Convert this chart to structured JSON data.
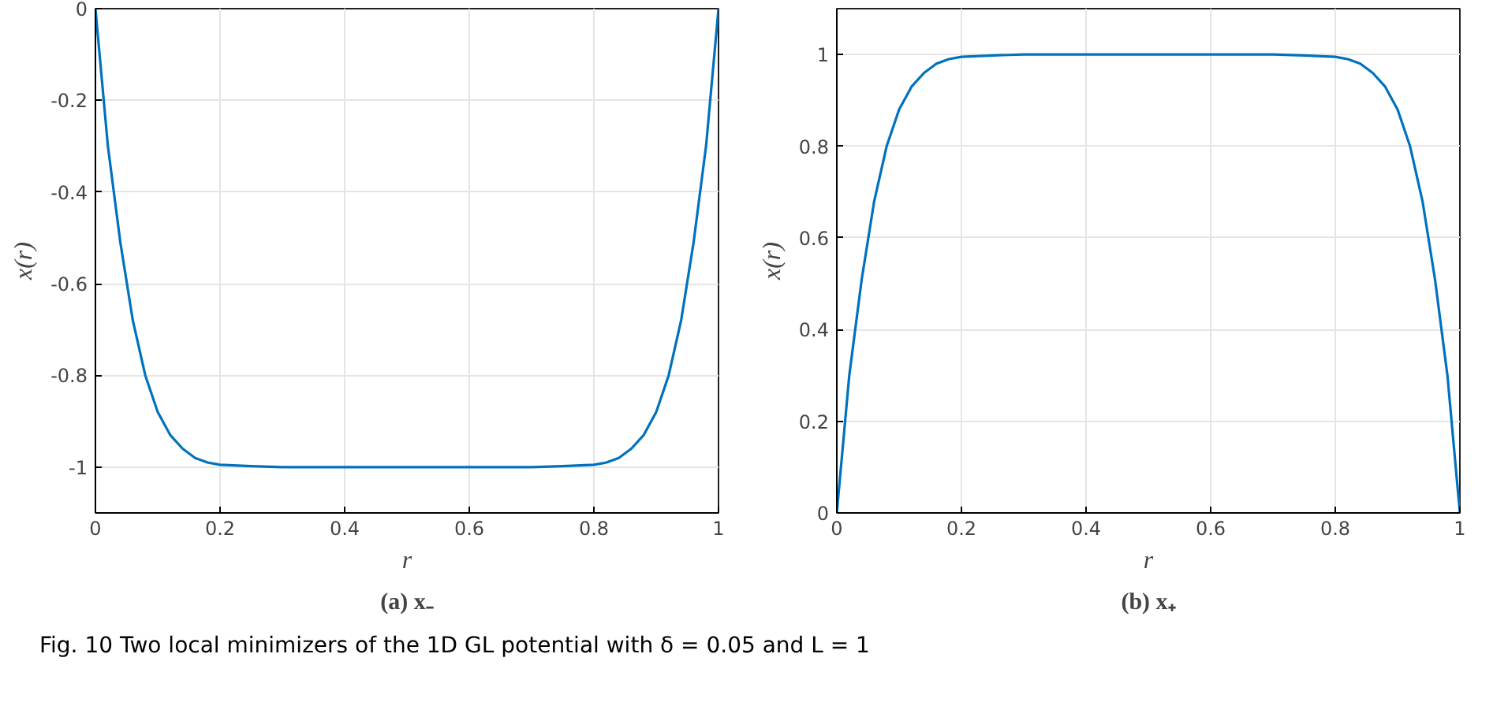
{
  "chart_data": [
    {
      "type": "line",
      "title": "(a) x₋",
      "xlabel": "r",
      "ylabel": "x(r)",
      "xlim": [
        0,
        1
      ],
      "ylim": [
        -1.1,
        0
      ],
      "xticks": [
        0,
        0.2,
        0.4,
        0.6,
        0.8,
        1
      ],
      "yticks": [
        0,
        -0.2,
        -0.4,
        -0.6,
        -0.8,
        -1
      ],
      "grid": true,
      "x": [
        0,
        0.02,
        0.04,
        0.06,
        0.08,
        0.1,
        0.12,
        0.14,
        0.16,
        0.18,
        0.2,
        0.25,
        0.3,
        0.4,
        0.5,
        0.6,
        0.7,
        0.75,
        0.8,
        0.82,
        0.84,
        0.86,
        0.88,
        0.9,
        0.92,
        0.94,
        0.96,
        0.98,
        1
      ],
      "series": [
        {
          "color": "#0072bd",
          "values": [
            0,
            -0.3,
            -0.51,
            -0.68,
            -0.8,
            -0.88,
            -0.93,
            -0.96,
            -0.98,
            -0.99,
            -0.995,
            -0.998,
            -1,
            -1,
            -1,
            -1,
            -1,
            -0.998,
            -0.995,
            -0.99,
            -0.98,
            -0.96,
            -0.93,
            -0.88,
            -0.8,
            -0.68,
            -0.51,
            -0.3,
            0
          ]
        }
      ],
      "annotations": [
        "Fig. 10  Two local minimizers of the 1D GL potential with δ = 0.05 and L = 1"
      ]
    },
    {
      "type": "line",
      "title": "(b) x₊",
      "xlabel": "r",
      "ylabel": "x(r)",
      "xlim": [
        0,
        1
      ],
      "ylim": [
        0,
        1.1
      ],
      "xticks": [
        0,
        0.2,
        0.4,
        0.6,
        0.8,
        1
      ],
      "yticks": [
        0,
        0.2,
        0.4,
        0.6,
        0.8,
        1
      ],
      "grid": true,
      "x": [
        0,
        0.02,
        0.04,
        0.06,
        0.08,
        0.1,
        0.12,
        0.14,
        0.16,
        0.18,
        0.2,
        0.25,
        0.3,
        0.4,
        0.5,
        0.6,
        0.7,
        0.75,
        0.8,
        0.82,
        0.84,
        0.86,
        0.88,
        0.9,
        0.92,
        0.94,
        0.96,
        0.98,
        1
      ],
      "series": [
        {
          "color": "#0072bd",
          "values": [
            0,
            0.3,
            0.51,
            0.68,
            0.8,
            0.88,
            0.93,
            0.96,
            0.98,
            0.99,
            0.995,
            0.998,
            1,
            1,
            1,
            1,
            1,
            0.998,
            0.995,
            0.99,
            0.98,
            0.96,
            0.93,
            0.88,
            0.8,
            0.68,
            0.51,
            0.3,
            0
          ]
        }
      ]
    }
  ]
}
